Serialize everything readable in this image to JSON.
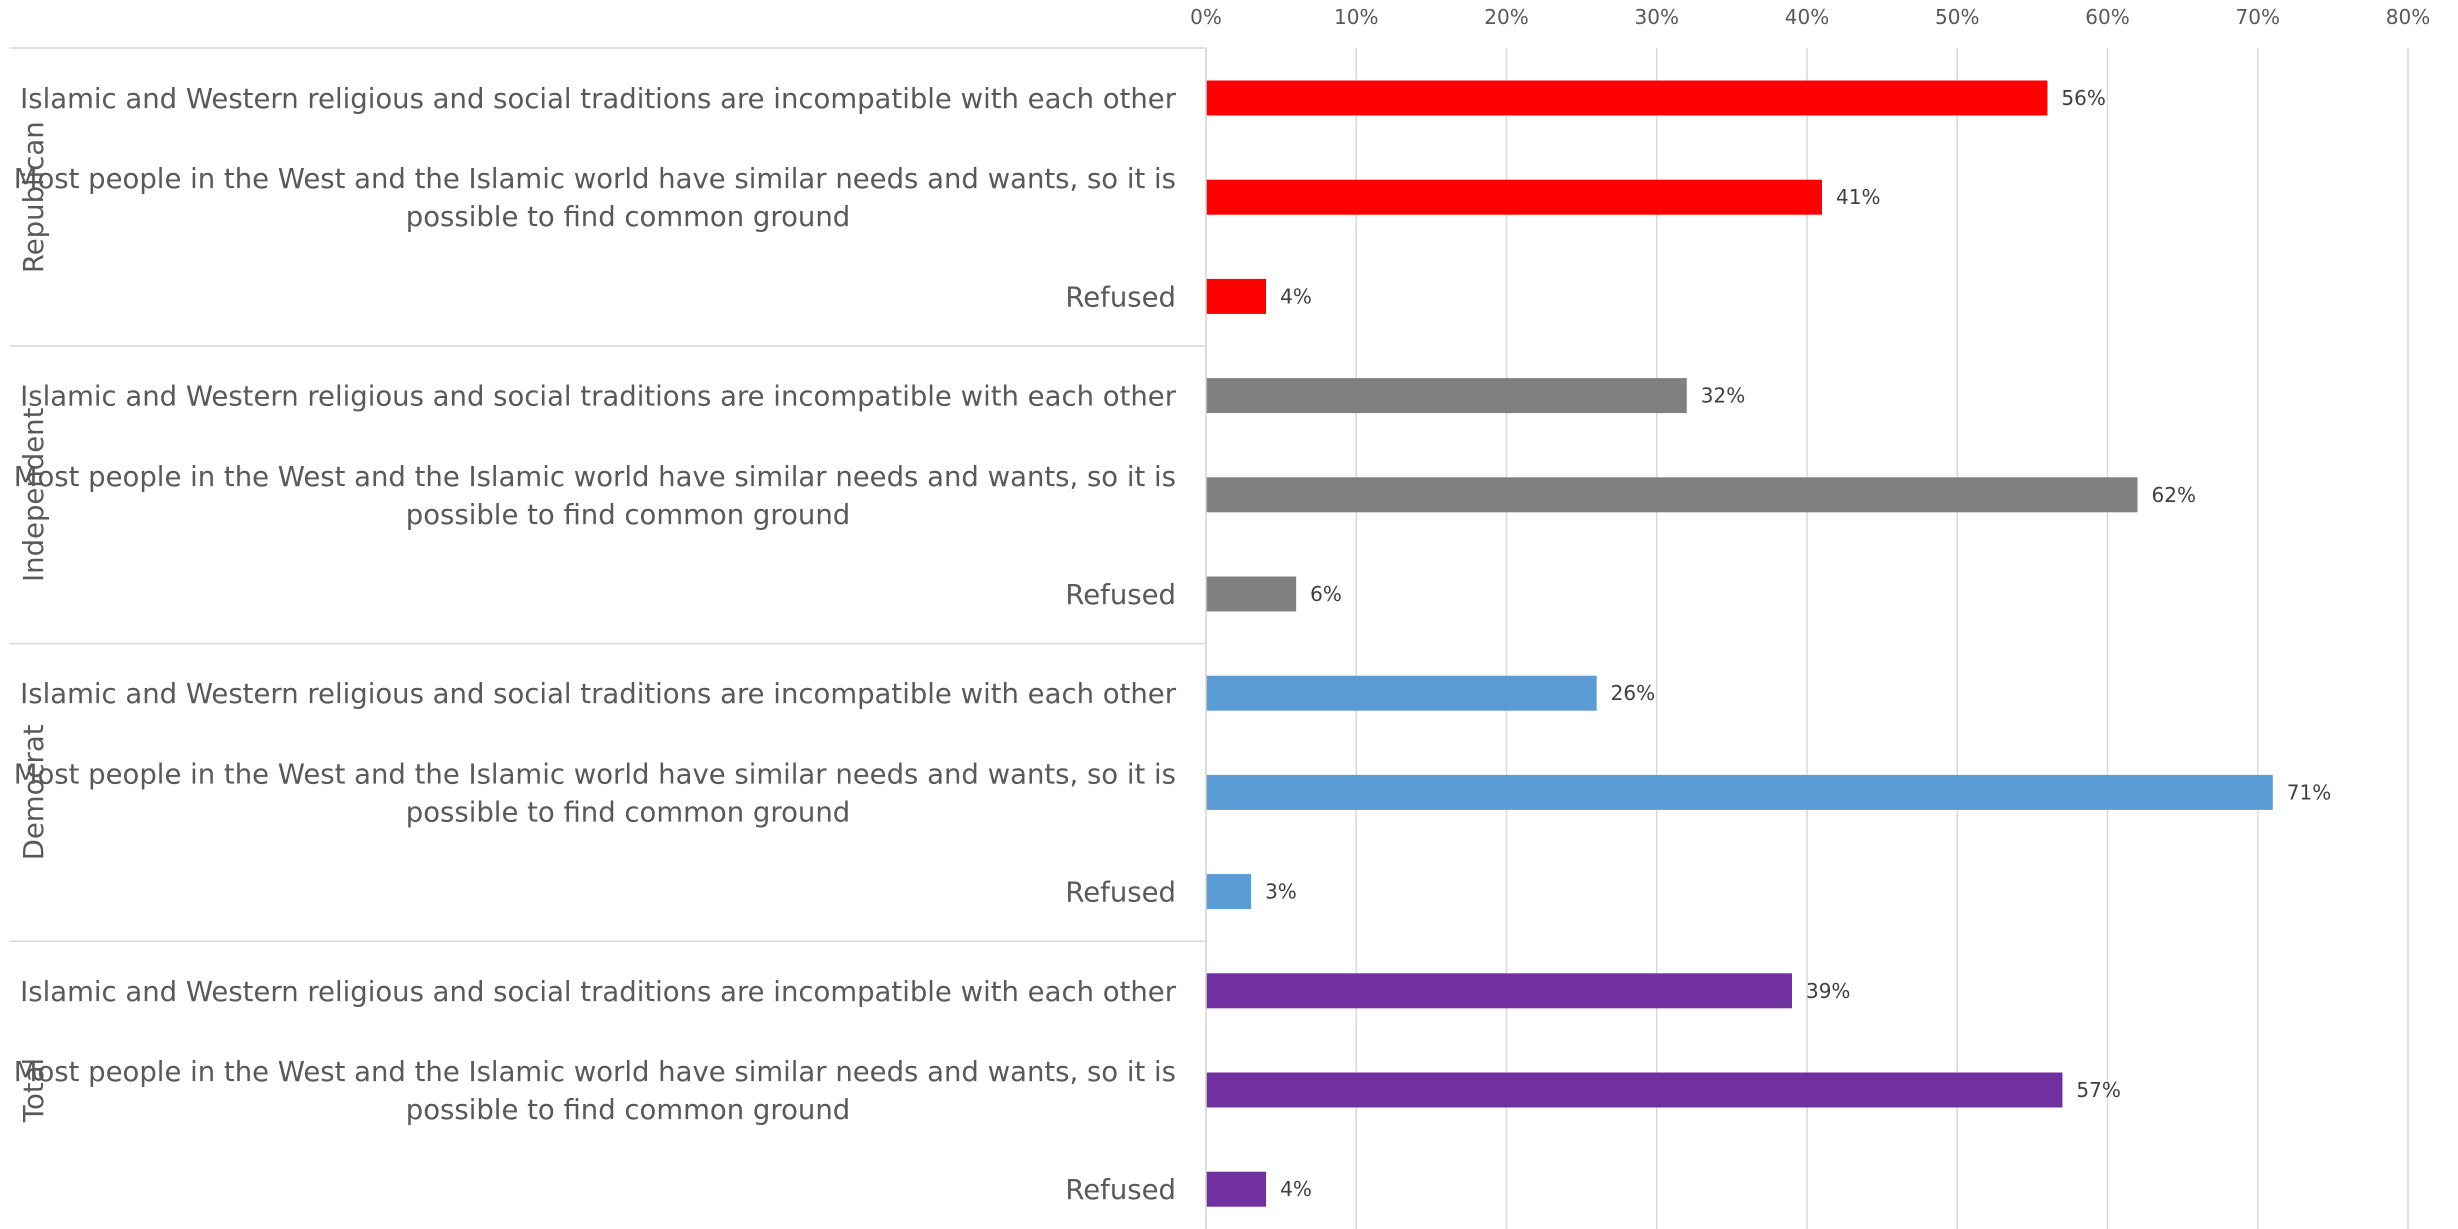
{
  "chart_data": {
    "type": "bar",
    "orientation": "horizontal",
    "x_axis": {
      "min": 0,
      "max": 80,
      "step": 10,
      "position": "top",
      "tick_labels": [
        "0%",
        "10%",
        "20%",
        "30%",
        "40%",
        "50%",
        "60%",
        "70%",
        "80%"
      ]
    },
    "grid": true,
    "legend": "none",
    "groups": [
      {
        "name": "Republican",
        "color": "#ff0000",
        "categories": [
          {
            "lines": [
              "Islamic and Western religious and social traditions are incompatible with each other"
            ],
            "value": 56,
            "value_label": "56%"
          },
          {
            "lines": [
              "Most people in the West and the Islamic world have similar needs and wants, so it is",
              "possible to find common ground"
            ],
            "value": 41,
            "value_label": "41%"
          },
          {
            "lines": [
              "Refused"
            ],
            "value": 4,
            "value_label": "4%"
          }
        ]
      },
      {
        "name": "Independent",
        "color": "#808080",
        "categories": [
          {
            "lines": [
              "Islamic and Western religious and social traditions are incompatible with each other"
            ],
            "value": 32,
            "value_label": "32%"
          },
          {
            "lines": [
              "Most people in the West and the Islamic world have similar needs and wants, so it is",
              "possible to find common ground"
            ],
            "value": 62,
            "value_label": "62%"
          },
          {
            "lines": [
              "Refused"
            ],
            "value": 6,
            "value_label": "6%"
          }
        ]
      },
      {
        "name": "Democrat",
        "color": "#5b9bd5",
        "categories": [
          {
            "lines": [
              "Islamic and Western religious and social traditions are incompatible with each other"
            ],
            "value": 26,
            "value_label": "26%"
          },
          {
            "lines": [
              "Most people in the West and the Islamic world have similar needs and wants, so it is",
              "possible to find common ground"
            ],
            "value": 71,
            "value_label": "71%"
          },
          {
            "lines": [
              "Refused"
            ],
            "value": 3,
            "value_label": "3%"
          }
        ]
      },
      {
        "name": "Total",
        "color": "#7030a0",
        "categories": [
          {
            "lines": [
              "Islamic and Western religious and social traditions are incompatible with each other"
            ],
            "value": 39,
            "value_label": "39%"
          },
          {
            "lines": [
              "Most people in the West and the Islamic world have similar needs and wants, so it is",
              "possible to find common ground"
            ],
            "value": 57,
            "value_label": "57%"
          },
          {
            "lines": [
              "Refused"
            ],
            "value": 4,
            "value_label": "4%"
          }
        ]
      }
    ]
  }
}
